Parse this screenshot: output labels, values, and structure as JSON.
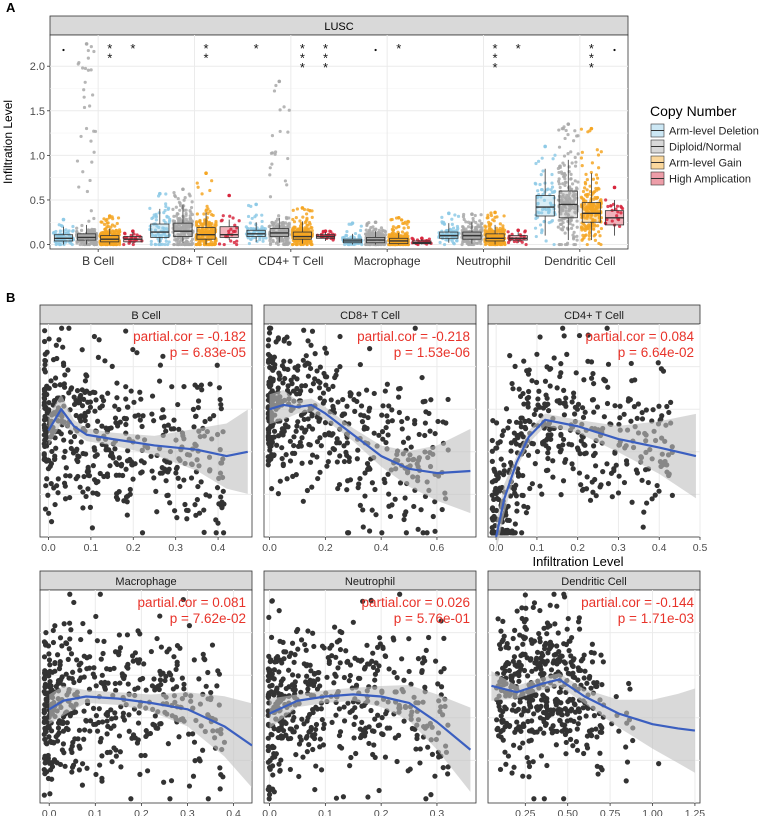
{
  "colors": {
    "strip_fill": "#d9d9d9",
    "strip_stroke": "#333333",
    "grid": "#ebebeb",
    "point": "#333333",
    "smooth_line": "#3b5fc0",
    "ribbon": "#bfbfbf",
    "annotation": "#e8332a",
    "group_colors": [
      "#8ecae6",
      "#a9a9a9",
      "#f5a623",
      "#d7263d"
    ]
  },
  "panel_a": {
    "letter": "A",
    "strip": "LUSC",
    "ylabel": "Infiltration Level",
    "yticks": [
      "0.0",
      "0.5",
      "1.0",
      "1.5",
      "2.0"
    ],
    "legend_title": "Copy Number",
    "legend_items": [
      "Arm-level Deletion",
      "Diploid/Normal",
      "Arm-level Gain",
      "High Amplication"
    ],
    "cells": [
      "B Cell",
      "CD8+ T Cell",
      "CD4+ T Cell",
      "Macrophage",
      "Neutrophil",
      "Dendritic Cell"
    ],
    "significance": [
      [
        ".",
        "",
        "**",
        "*"
      ],
      [
        "",
        "",
        "**",
        ""
      ],
      [
        "*",
        "",
        "***",
        "***"
      ],
      [
        "",
        ".",
        "*",
        ""
      ],
      [
        "",
        "",
        "***",
        "*"
      ],
      [
        "",
        "",
        "***",
        "."
      ]
    ]
  },
  "panel_b": {
    "letter": "B",
    "xlabel": "Infiltration Level"
  },
  "chart_data": [
    {
      "type": "box",
      "title": "LUSC",
      "ylabel": "Infiltration Level",
      "ylim": [
        -0.05,
        2.35
      ],
      "categories": [
        "B Cell",
        "CD8+ T Cell",
        "CD4+ T Cell",
        "Macrophage",
        "Neutrophil",
        "Dendritic Cell"
      ],
      "series": [
        {
          "name": "Arm-level Deletion",
          "boxes": [
            [
              0.0,
              0.04,
              0.07,
              0.11,
              0.2
            ],
            [
              0.02,
              0.08,
              0.14,
              0.23,
              0.4
            ],
            [
              0.03,
              0.09,
              0.12,
              0.16,
              0.25
            ],
            [
              0.0,
              0.02,
              0.04,
              0.06,
              0.12
            ],
            [
              0.02,
              0.07,
              0.1,
              0.14,
              0.24
            ],
            [
              0.1,
              0.32,
              0.42,
              0.55,
              0.85
            ]
          ],
          "max": [
            0.28,
            0.57,
            0.45,
            0.24,
            0.35,
            1.1
          ]
        },
        {
          "name": "Diploid/Normal",
          "boxes": [
            [
              0.0,
              0.05,
              0.08,
              0.12,
              0.22
            ],
            [
              0.02,
              0.09,
              0.15,
              0.24,
              0.45
            ],
            [
              0.02,
              0.09,
              0.13,
              0.18,
              0.3
            ],
            [
              0.0,
              0.02,
              0.05,
              0.08,
              0.15
            ],
            [
              0.01,
              0.06,
              0.1,
              0.14,
              0.25
            ],
            [
              0.05,
              0.3,
              0.45,
              0.6,
              0.95
            ]
          ],
          "max": [
            2.25,
            0.62,
            1.83,
            0.25,
            0.34,
            1.35
          ]
        },
        {
          "name": "Arm-level Gain",
          "boxes": [
            [
              0.0,
              0.03,
              0.06,
              0.1,
              0.18
            ],
            [
              0.0,
              0.06,
              0.11,
              0.19,
              0.36
            ],
            [
              0.01,
              0.06,
              0.09,
              0.14,
              0.26
            ],
            [
              0.0,
              0.01,
              0.04,
              0.07,
              0.13
            ],
            [
              0.0,
              0.04,
              0.07,
              0.12,
              0.22
            ],
            [
              0.05,
              0.25,
              0.35,
              0.47,
              0.8
            ]
          ],
          "max": [
            0.32,
            0.8,
            0.41,
            0.3,
            0.36,
            1.3
          ]
        },
        {
          "name": "High Amplication",
          "boxes": [
            [
              0.01,
              0.03,
              0.06,
              0.09,
              0.14
            ],
            [
              0.05,
              0.08,
              0.11,
              0.2,
              0.28
            ],
            [
              0.04,
              0.07,
              0.09,
              0.11,
              0.14
            ],
            [
              0.0,
              0.01,
              0.02,
              0.04,
              0.06
            ],
            [
              0.02,
              0.05,
              0.07,
              0.1,
              0.14
            ],
            [
              0.1,
              0.22,
              0.3,
              0.38,
              0.5
            ]
          ],
          "max": [
            0.15,
            0.55,
            0.15,
            0.07,
            0.16,
            0.64
          ]
        }
      ]
    },
    {
      "type": "scatter",
      "panel": "B Cell",
      "annotation": [
        "partial.cor = -0.182",
        "p = 6.83e-05"
      ],
      "xlim": [
        -0.02,
        0.48
      ],
      "xticks": [
        "0.0",
        "0.1",
        "0.2",
        "0.3",
        "0.4"
      ],
      "xticks_at": [
        0.0,
        0.1,
        0.2,
        0.3,
        0.4
      ],
      "smooth_x": [
        0.0,
        0.03,
        0.06,
        0.09,
        0.15,
        0.25,
        0.35,
        0.42,
        0.47
      ],
      "smooth_y": [
        0.5,
        0.6,
        0.52,
        0.48,
        0.46,
        0.43,
        0.41,
        0.38,
        0.4
      ]
    },
    {
      "type": "scatter",
      "panel": "CD8+ T Cell",
      "annotation": [
        "partial.cor = -0.218",
        "p = 1.53e-06"
      ],
      "xlim": [
        -0.02,
        0.74
      ],
      "xticks": [
        "0.0",
        "0.2",
        "0.4",
        "0.6"
      ],
      "xticks_at": [
        0.0,
        0.2,
        0.4,
        0.6
      ],
      "smooth_x": [
        0.0,
        0.05,
        0.1,
        0.15,
        0.2,
        0.3,
        0.4,
        0.5,
        0.6,
        0.72
      ],
      "smooth_y": [
        0.6,
        0.62,
        0.61,
        0.62,
        0.58,
        0.48,
        0.38,
        0.32,
        0.3,
        0.31
      ]
    },
    {
      "type": "scatter",
      "panel": "CD4+ T Cell",
      "annotation": [
        "partial.cor = 0.084",
        "p = 6.64e-02"
      ],
      "xlim": [
        -0.02,
        0.5
      ],
      "xticks": [
        "0.0",
        "0.1",
        "0.2",
        "0.3",
        "0.4",
        "0.5"
      ],
      "xticks_at": [
        0.0,
        0.1,
        0.2,
        0.3,
        0.4,
        0.5
      ],
      "smooth_x": [
        0.0,
        0.02,
        0.05,
        0.08,
        0.12,
        0.2,
        0.3,
        0.4,
        0.49
      ],
      "smooth_y": [
        0.0,
        0.18,
        0.35,
        0.47,
        0.55,
        0.52,
        0.46,
        0.42,
        0.38
      ]
    },
    {
      "type": "scatter",
      "panel": "Macrophage",
      "annotation": [
        "partial.cor = 0.081",
        "p = 7.62e-02"
      ],
      "xlim": [
        -0.02,
        0.44
      ],
      "xticks": [
        "0.0",
        "0.1",
        "0.2",
        "0.3",
        "0.4"
      ],
      "xticks_at": [
        0.0,
        0.1,
        0.2,
        0.3,
        0.4
      ],
      "smooth_x": [
        0.0,
        0.03,
        0.08,
        0.15,
        0.22,
        0.3,
        0.38,
        0.44
      ],
      "smooth_y": [
        0.44,
        0.48,
        0.5,
        0.49,
        0.47,
        0.44,
        0.36,
        0.27
      ]
    },
    {
      "type": "scatter",
      "panel": "Neutrophil",
      "annotation": [
        "partial.cor = 0.026",
        "p = 5.76e-01"
      ],
      "xlim": [
        -0.01,
        0.37
      ],
      "xticks": [
        "0.0",
        "0.1",
        "0.2",
        "0.3"
      ],
      "xticks_at": [
        0.0,
        0.1,
        0.2,
        0.3
      ],
      "smooth_x": [
        0.0,
        0.05,
        0.1,
        0.15,
        0.2,
        0.25,
        0.3,
        0.36
      ],
      "smooth_y": [
        0.42,
        0.48,
        0.5,
        0.51,
        0.5,
        0.47,
        0.38,
        0.25
      ]
    },
    {
      "type": "scatter",
      "panel": "Dendritic Cell",
      "annotation": [
        "partial.cor = -0.144",
        "p = 1.71e-03"
      ],
      "xlim": [
        0.03,
        1.28
      ],
      "xticks": [
        "0.25",
        "0.50",
        "0.75",
        "1.00",
        "1.25"
      ],
      "xticks_at": [
        0.25,
        0.5,
        0.75,
        1.0,
        1.25
      ],
      "smooth_x": [
        0.05,
        0.2,
        0.35,
        0.45,
        0.6,
        0.8,
        1.0,
        1.15,
        1.25
      ],
      "smooth_y": [
        0.55,
        0.52,
        0.56,
        0.58,
        0.5,
        0.42,
        0.37,
        0.35,
        0.34
      ]
    }
  ]
}
